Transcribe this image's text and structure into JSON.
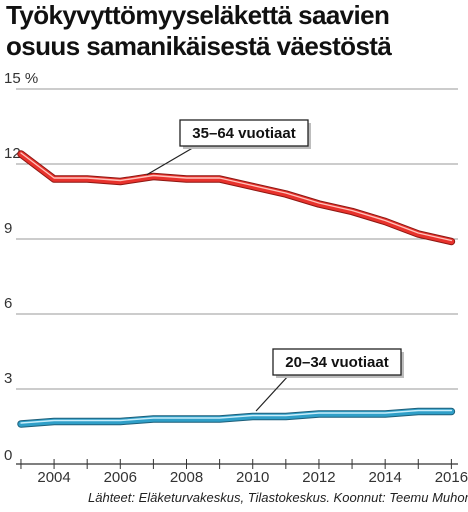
{
  "title_lines": [
    "Työkyvyttömyyseläkettä saavien",
    "osuus samanikäisestä väestöstä"
  ],
  "source": "Lähteet: Eläketurvakeskus, Tilastokeskus. Koonnut: Teemu Muhonen",
  "chart_data": {
    "type": "line",
    "title": "Työkyvyttömyyseläkettä saavien osuus samanikäisestä väestöstä",
    "ylabel": "",
    "xlabel": "",
    "y_unit": "%",
    "xlim": [
      2002.85,
      2016.2
    ],
    "ylim": [
      0,
      15
    ],
    "x_ticks": [
      2004,
      2006,
      2008,
      2010,
      2012,
      2014,
      2016
    ],
    "y_ticks": [
      0,
      3,
      6,
      9,
      12,
      15
    ],
    "y_tick_labels": [
      "0",
      "3",
      "6",
      "9",
      "12",
      "15 %"
    ],
    "grid": "horizontal",
    "series": [
      {
        "name": "35–64 vuotiaat",
        "color": "#e8322c",
        "x": [
          2003,
          2004,
          2005,
          2006,
          2007,
          2008,
          2009,
          2010,
          2011,
          2012,
          2013,
          2014,
          2015,
          2016
        ],
        "values": [
          12.4,
          11.4,
          11.4,
          11.3,
          11.5,
          11.4,
          11.4,
          11.1,
          10.8,
          10.4,
          10.1,
          9.7,
          9.2,
          8.9
        ],
        "label_anchor": [
          2006.8,
          11.45
        ]
      },
      {
        "name": "20–34 vuotiaat",
        "color": "#2f9fc8",
        "x": [
          2003,
          2004,
          2005,
          2006,
          2007,
          2008,
          2009,
          2010,
          2011,
          2012,
          2013,
          2014,
          2015,
          2016
        ],
        "values": [
          1.6,
          1.7,
          1.7,
          1.7,
          1.8,
          1.8,
          1.8,
          1.9,
          1.9,
          2.0,
          2.0,
          2.0,
          2.1,
          2.1
        ],
        "label_anchor": [
          2010.1,
          2.0
        ]
      }
    ]
  }
}
